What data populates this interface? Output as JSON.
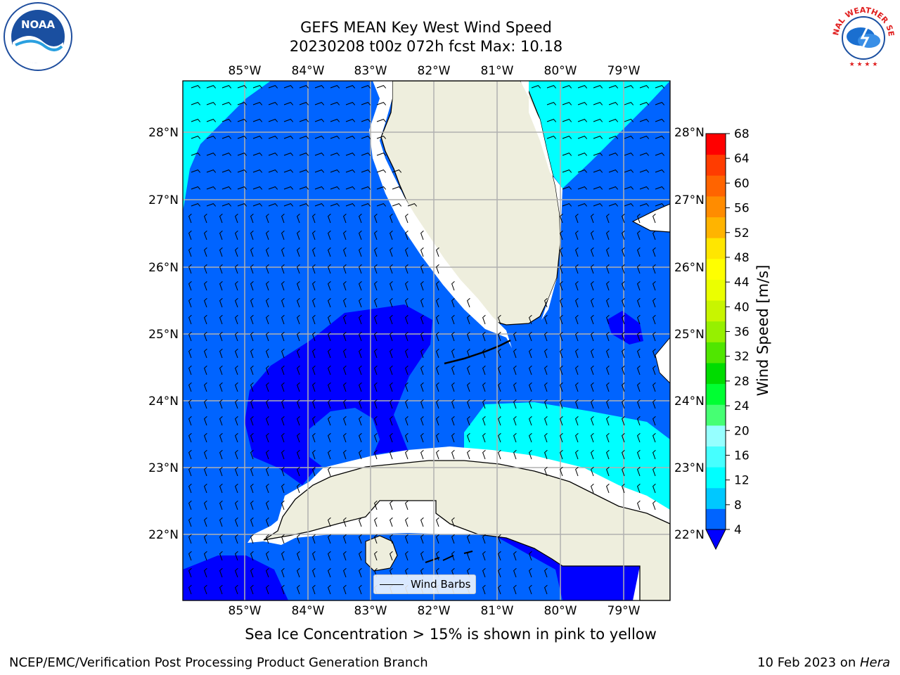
{
  "header": {
    "title": "GEFS MEAN Key West Wind Speed",
    "subtitle": "20230208 t00z 072h fcst   Max: 10.18"
  },
  "map": {
    "lon_ticks": [
      "85°W",
      "84°W",
      "83°W",
      "82°W",
      "81°W",
      "80°W",
      "79°W"
    ],
    "lat_ticks": [
      "28°N",
      "27°N",
      "26°N",
      "25°N",
      "24°N",
      "23°N",
      "22°N"
    ],
    "extent": {
      "lon_min": -86.0,
      "lon_max": -78.25,
      "lat_min": 21.05,
      "lat_max": 28.75
    }
  },
  "colorbar": {
    "title": "Wind Speed [m/s]",
    "ticks": [
      "68",
      "64",
      "60",
      "56",
      "52",
      "48",
      "44",
      "40",
      "36",
      "32",
      "28",
      "24",
      "20",
      "16",
      "12",
      "8",
      "4"
    ],
    "colors_low_to_high": [
      "#0064ff",
      "#00c8ff",
      "#00ffff",
      "#46ffff",
      "#96ffff",
      "#46ff73",
      "#00ff32",
      "#00dc00",
      "#50e600",
      "#96f000",
      "#c8f500",
      "#ebff00",
      "#ffff00",
      "#ffe600",
      "#ffb400",
      "#ff8c00",
      "#ff6400",
      "#ff3c00",
      "#ff0000"
    ],
    "under_color": "#0000ff"
  },
  "legend": {
    "label": "Wind Barbs"
  },
  "footer": {
    "note": "Sea Ice Concentration > 15% is shown in pink to yellow",
    "left": "NCEP/EMC/Verification Post Processing Product Generation Branch",
    "date": "10 Feb 2023 on ",
    "host": "Hera"
  },
  "logos": {
    "noaa": "NOAA",
    "nws": "NATIONAL WEATHER SERVICE"
  },
  "colors": {
    "land": "#eeeedd",
    "wind_4_8": "#0064ff",
    "wind_8_12": "#00ffff",
    "wind_lt_4": "#0000ff",
    "grid": "#b0b0b0"
  }
}
